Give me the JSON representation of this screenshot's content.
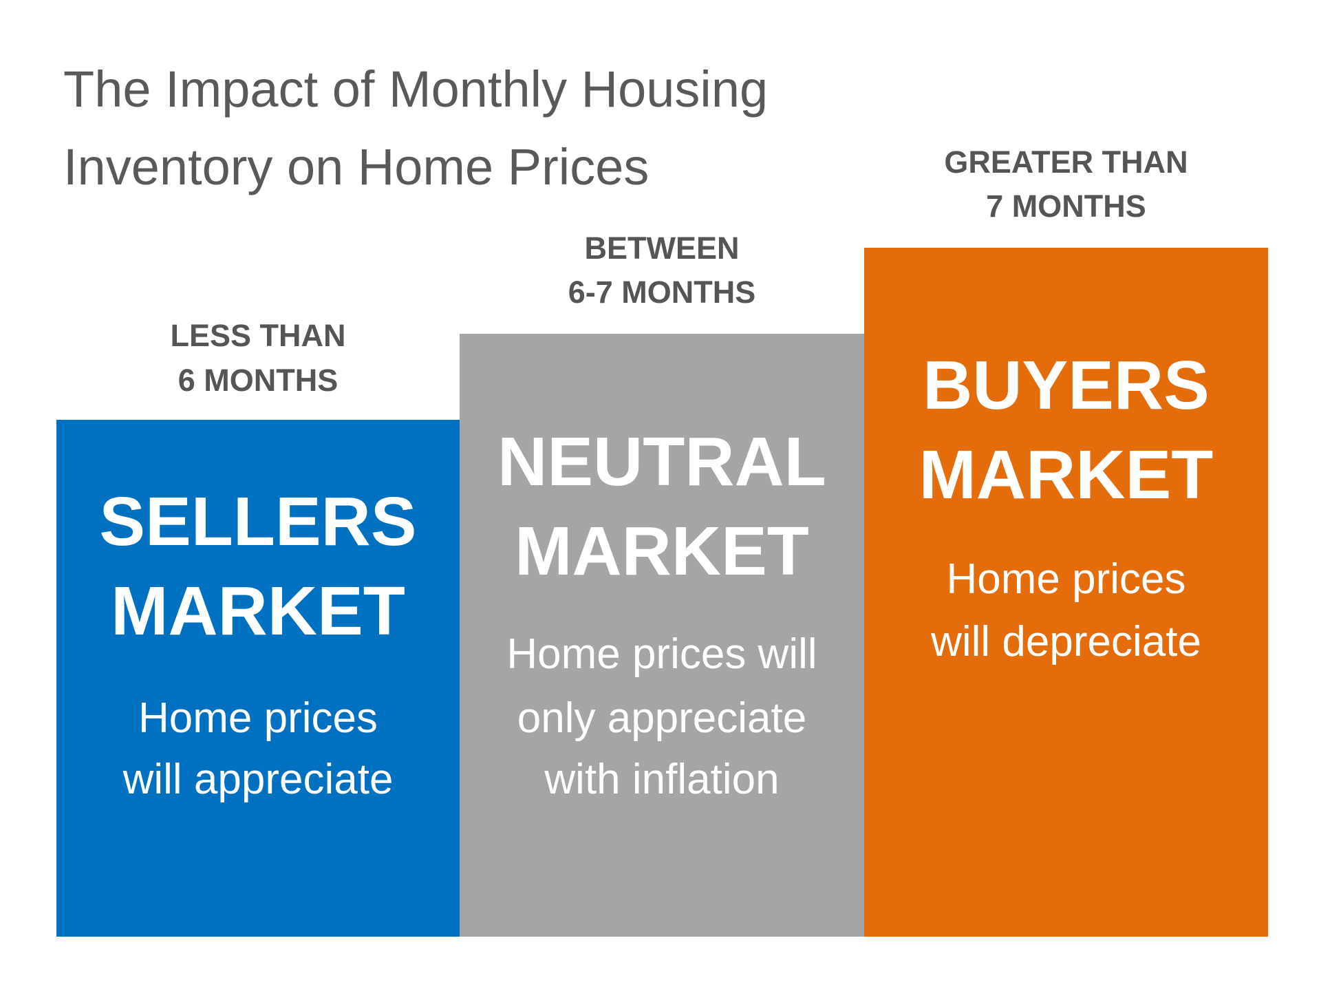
{
  "title": [
    "The Impact of Monthly Housing",
    "Inventory on Home Prices"
  ],
  "columns": [
    {
      "range": [
        "LESS THAN",
        "6 MONTHS"
      ],
      "market": [
        "SELLERS",
        "MARKET"
      ],
      "description": [
        "Home prices",
        "will appreciate"
      ]
    },
    {
      "range": [
        "BETWEEN",
        "6-7 MONTHS"
      ],
      "market": [
        "NEUTRAL",
        "MARKET"
      ],
      "description": [
        "Home prices will",
        "only appreciate",
        "with inflation"
      ]
    },
    {
      "range": [
        "GREATER THAN",
        "7 MONTHS"
      ],
      "market": [
        "BUYERS",
        "MARKET"
      ],
      "description": [
        "Home prices",
        "will depreciate"
      ]
    }
  ]
}
